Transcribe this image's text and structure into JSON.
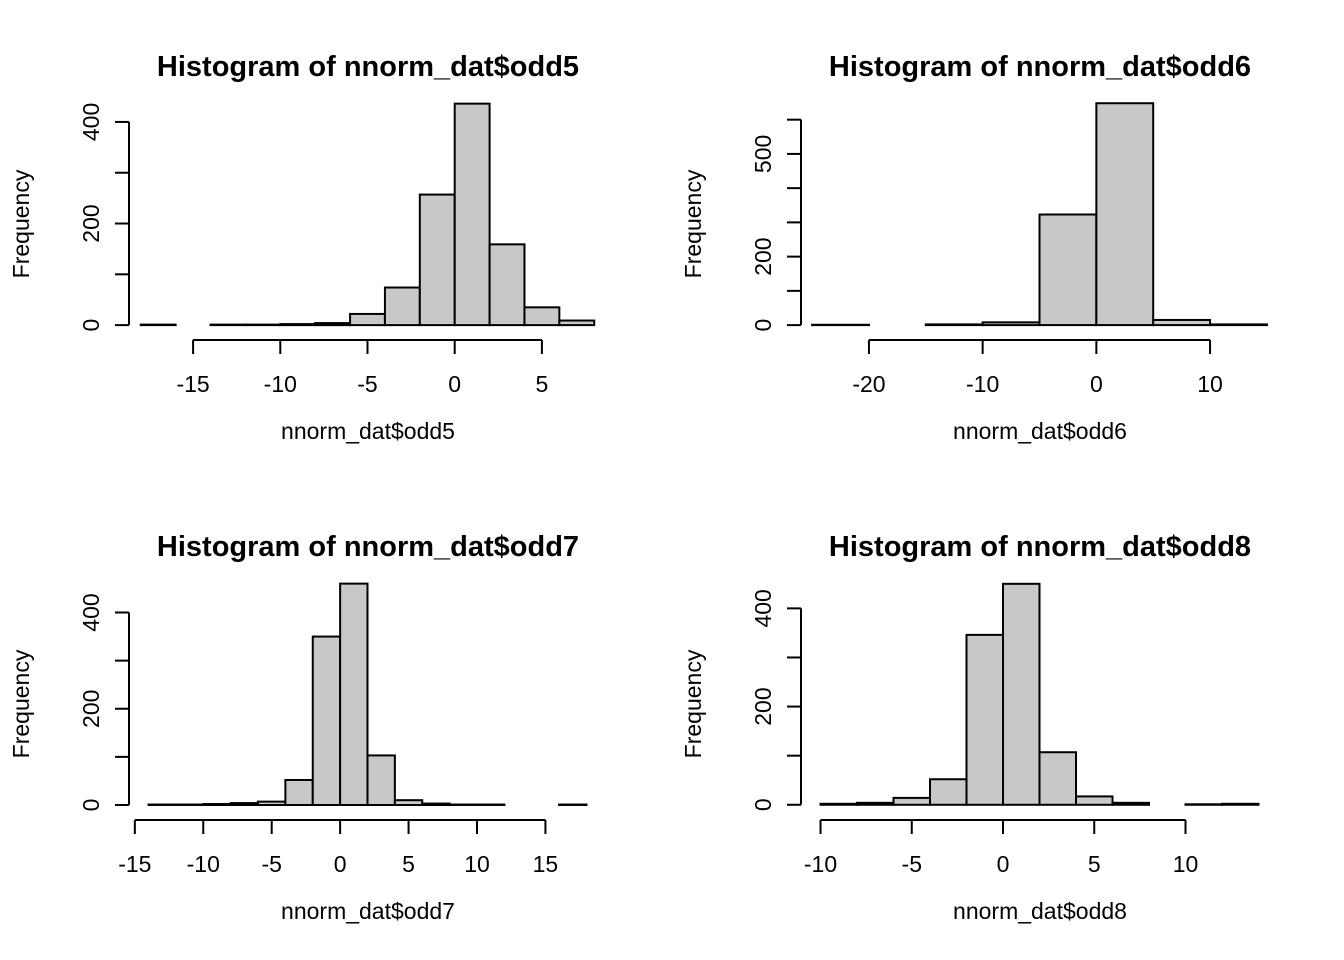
{
  "chart_data": [
    {
      "type": "bar",
      "title": "Histogram of nnorm_dat$odd5",
      "xlabel": "nnorm_dat$odd5",
      "ylabel": "Frequency",
      "breaks": [
        -18,
        -16,
        -14,
        -12,
        -10,
        -8,
        -6,
        -4,
        -2,
        0,
        2,
        4,
        6,
        8
      ],
      "counts": [
        1,
        0,
        1,
        1,
        2,
        4,
        22,
        74,
        257,
        436,
        159,
        35,
        9
      ],
      "xticks": [
        -15,
        -10,
        -5,
        0,
        5
      ],
      "xtick_labels": [
        "-15",
        "-10",
        "-5",
        "0",
        "5"
      ],
      "yticks": [
        0,
        100,
        200,
        300,
        400
      ],
      "ytick_labels": [
        "0",
        "",
        "200",
        "",
        "400"
      ],
      "color": "#c8c8c8"
    },
    {
      "type": "bar",
      "title": "Histogram of nnorm_dat$odd6",
      "xlabel": "nnorm_dat$odd6",
      "ylabel": "Frequency",
      "breaks": [
        -25,
        -20,
        -15,
        -10,
        -5,
        0,
        5,
        10,
        15
      ],
      "counts": [
        1,
        0,
        2,
        8,
        323,
        648,
        15,
        2
      ],
      "xticks": [
        -20,
        -10,
        0,
        10
      ],
      "xtick_labels": [
        "-20",
        "-10",
        "0",
        "10"
      ],
      "yticks": [
        0,
        100,
        200,
        300,
        400,
        500,
        600
      ],
      "ytick_labels": [
        "0",
        "",
        "200",
        "",
        "",
        "500",
        ""
      ],
      "color": "#c8c8c8"
    },
    {
      "type": "bar",
      "title": "Histogram of nnorm_dat$odd7",
      "xlabel": "nnorm_dat$odd7",
      "ylabel": "Frequency",
      "breaks": [
        -14,
        -12,
        -10,
        -8,
        -6,
        -4,
        -2,
        0,
        2,
        4,
        6,
        8,
        10,
        12,
        14,
        16,
        18
      ],
      "counts": [
        1,
        1,
        2,
        4,
        7,
        52,
        350,
        460,
        103,
        10,
        3,
        1,
        1,
        0,
        0,
        1
      ],
      "xticks": [
        -15,
        -10,
        -5,
        0,
        5,
        10,
        15
      ],
      "xtick_labels": [
        "-15",
        "-10",
        "-5",
        "0",
        "5",
        "10",
        "15"
      ],
      "yticks": [
        0,
        100,
        200,
        300,
        400
      ],
      "ytick_labels": [
        "0",
        "",
        "200",
        "",
        "400"
      ],
      "color": "#c8c8c8"
    },
    {
      "type": "bar",
      "title": "Histogram of nnorm_dat$odd8",
      "xlabel": "nnorm_dat$odd8",
      "ylabel": "Frequency",
      "breaks": [
        -10,
        -8,
        -6,
        -4,
        -2,
        0,
        2,
        4,
        6,
        8,
        10,
        12,
        14
      ],
      "counts": [
        2,
        4,
        14,
        52,
        346,
        450,
        107,
        17,
        4,
        0,
        1,
        2
      ],
      "xticks": [
        -10,
        -5,
        0,
        5,
        10
      ],
      "xtick_labels": [
        "-10",
        "-5",
        "0",
        "5",
        "10"
      ],
      "yticks": [
        0,
        100,
        200,
        300,
        400
      ],
      "ytick_labels": [
        "0",
        "",
        "200",
        "",
        "400"
      ],
      "color": "#c8c8c8"
    }
  ]
}
